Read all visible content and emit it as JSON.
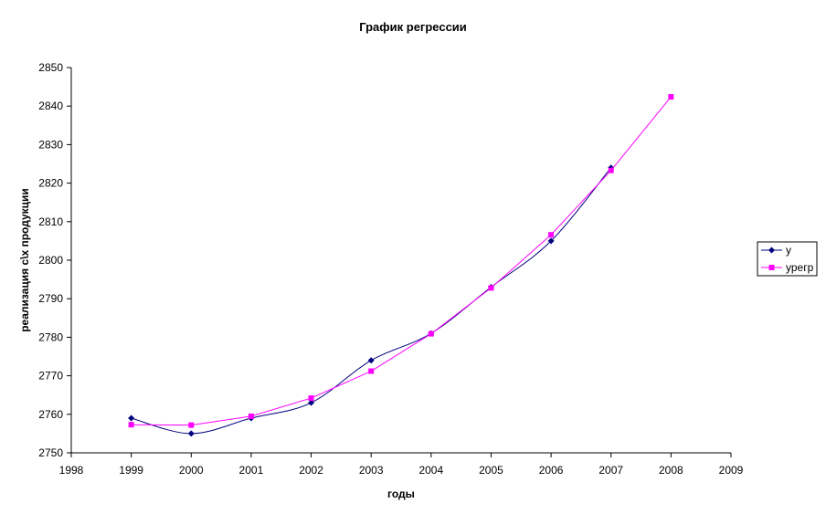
{
  "chart_data": {
    "type": "line",
    "title": "График регрессии",
    "xlabel": "годы",
    "ylabel": "реализация с\\х продукции",
    "xlim": [
      1998,
      2009
    ],
    "ylim": [
      2750,
      2850
    ],
    "x_ticks": [
      "1998",
      "1999",
      "2000",
      "2001",
      "2002",
      "2003",
      "2004",
      "2005",
      "2006",
      "2007",
      "2008",
      "2009"
    ],
    "y_ticks": [
      "2750",
      "2760",
      "2770",
      "2780",
      "2790",
      "2800",
      "2810",
      "2820",
      "2830",
      "2840",
      "2850"
    ],
    "grid": false,
    "legend_position": "right",
    "series": [
      {
        "name": "у",
        "color": "#000080",
        "marker": "diamond",
        "smooth": true,
        "x": [
          1999,
          2000,
          2001,
          2002,
          2003,
          2004,
          2005,
          2006,
          2007
        ],
        "y": [
          2759,
          2755,
          2759,
          2763,
          2774,
          2781,
          2793,
          2805,
          2824
        ]
      },
      {
        "name": "урегр",
        "color": "#FF00FF",
        "marker": "square",
        "smooth": false,
        "x": [
          1999,
          2000,
          2001,
          2002,
          2003,
          2004,
          2005,
          2006,
          2007,
          2008
        ],
        "y": [
          2757.3,
          2757.2,
          2759.5,
          2764.2,
          2771.2,
          2780.9,
          2792.8,
          2806.6,
          2823.3,
          2842.4
        ]
      }
    ]
  }
}
